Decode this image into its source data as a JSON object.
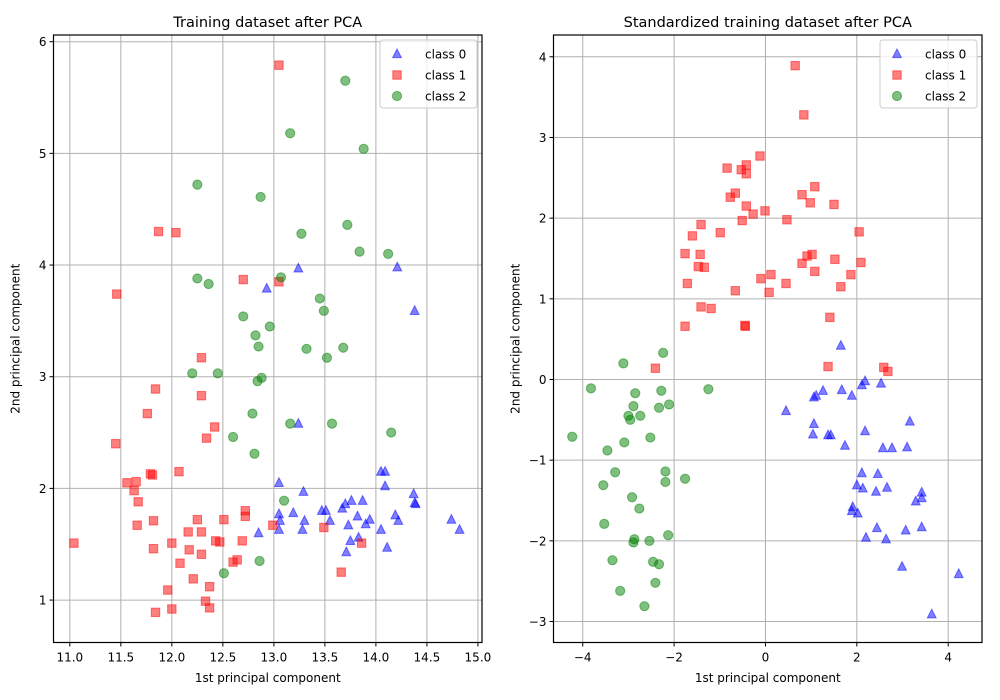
{
  "chart_data": [
    {
      "type": "scatter",
      "title": "Training dataset after PCA",
      "xlabel": "1st principal component",
      "ylabel": "2nd principal component",
      "xlim": [
        10.84,
        15.04
      ],
      "ylim": [
        0.62,
        6.06
      ],
      "xticks": [
        11.0,
        11.5,
        12.0,
        12.5,
        13.0,
        13.5,
        14.0,
        14.5,
        15.0
      ],
      "xtick_labels": [
        "11.0",
        "11.5",
        "12.0",
        "12.5",
        "13.0",
        "13.5",
        "14.0",
        "14.5",
        "15.0"
      ],
      "yticks": [
        1,
        2,
        3,
        4,
        5,
        6
      ],
      "ytick_labels": [
        "1",
        "2",
        "3",
        "4",
        "5",
        "6"
      ],
      "grid": true,
      "legend": "top-right",
      "series": [
        {
          "name": "class 0",
          "marker": "triangle",
          "color": "#0000ff",
          "points": [
            [
              13.24,
              3.97
            ],
            [
              14.21,
              3.98
            ],
            [
              12.93,
              3.79
            ],
            [
              14.38,
              3.59
            ],
            [
              13.24,
              2.58
            ],
            [
              13.05,
              2.05
            ],
            [
              14.05,
              2.15
            ],
            [
              14.09,
              2.15
            ],
            [
              14.09,
              2.02
            ],
            [
              13.29,
              1.97
            ],
            [
              14.37,
              1.95
            ],
            [
              14.38,
              1.87
            ],
            [
              14.39,
              1.86
            ],
            [
              13.76,
              1.89
            ],
            [
              13.87,
              1.89
            ],
            [
              13.7,
              1.86
            ],
            [
              13.67,
              1.82
            ],
            [
              13.05,
              1.77
            ],
            [
              13.19,
              1.78
            ],
            [
              13.47,
              1.8
            ],
            [
              13.51,
              1.8
            ],
            [
              13.82,
              1.75
            ],
            [
              14.19,
              1.76
            ],
            [
              13.06,
              1.71
            ],
            [
              13.3,
              1.71
            ],
            [
              13.55,
              1.71
            ],
            [
              13.94,
              1.72
            ],
            [
              14.22,
              1.71
            ],
            [
              14.74,
              1.72
            ],
            [
              13.73,
              1.67
            ],
            [
              13.9,
              1.68
            ],
            [
              13.05,
              1.63
            ],
            [
              13.28,
              1.63
            ],
            [
              14.05,
              1.63
            ],
            [
              14.82,
              1.63
            ],
            [
              12.85,
              1.6
            ],
            [
              13.75,
              1.53
            ],
            [
              13.83,
              1.56
            ],
            [
              14.11,
              1.47
            ],
            [
              13.71,
              1.43
            ]
          ]
        },
        {
          "name": "class 1",
          "marker": "square",
          "color": "#ff0000",
          "points": [
            [
              13.05,
              5.79
            ],
            [
              11.87,
              4.3
            ],
            [
              12.04,
              4.29
            ],
            [
              11.46,
              3.74
            ],
            [
              12.7,
              3.87
            ],
            [
              13.05,
              3.85
            ],
            [
              12.29,
              3.17
            ],
            [
              11.84,
              2.89
            ],
            [
              12.29,
              2.83
            ],
            [
              11.76,
              2.67
            ],
            [
              12.42,
              2.55
            ],
            [
              12.34,
              2.45
            ],
            [
              11.45,
              2.4
            ],
            [
              12.07,
              2.15
            ],
            [
              11.79,
              2.13
            ],
            [
              11.81,
              2.12
            ],
            [
              11.56,
              2.05
            ],
            [
              11.65,
              2.06
            ],
            [
              11.63,
              1.98
            ],
            [
              11.67,
              1.88
            ],
            [
              12.72,
              1.8
            ],
            [
              12.72,
              1.75
            ],
            [
              12.25,
              1.72
            ],
            [
              12.51,
              1.72
            ],
            [
              11.82,
              1.71
            ],
            [
              11.66,
              1.67
            ],
            [
              12.99,
              1.67
            ],
            [
              13.49,
              1.65
            ],
            [
              12.16,
              1.61
            ],
            [
              12.29,
              1.61
            ],
            [
              11.04,
              1.51
            ],
            [
              12.0,
              1.51
            ],
            [
              12.43,
              1.53
            ],
            [
              12.47,
              1.52
            ],
            [
              12.69,
              1.53
            ],
            [
              13.86,
              1.51
            ],
            [
              11.82,
              1.46
            ],
            [
              12.17,
              1.45
            ],
            [
              12.29,
              1.41
            ],
            [
              12.08,
              1.33
            ],
            [
              12.6,
              1.34
            ],
            [
              12.64,
              1.36
            ],
            [
              13.66,
              1.25
            ],
            [
              12.21,
              1.19
            ],
            [
              12.37,
              1.12
            ],
            [
              11.96,
              1.09
            ],
            [
              12.33,
              0.99
            ],
            [
              12.37,
              0.93
            ],
            [
              12.0,
              0.92
            ],
            [
              11.84,
              0.89
            ]
          ]
        },
        {
          "name": "class 2",
          "marker": "circle",
          "color": "#008000",
          "points": [
            [
              12.25,
              4.72
            ],
            [
              12.87,
              4.61
            ],
            [
              13.16,
              5.18
            ],
            [
              13.7,
              5.65
            ],
            [
              13.88,
              5.04
            ],
            [
              13.27,
              4.28
            ],
            [
              13.72,
              4.36
            ],
            [
              13.84,
              4.12
            ],
            [
              14.12,
              4.1
            ],
            [
              12.25,
              3.88
            ],
            [
              12.36,
              3.83
            ],
            [
              13.07,
              3.89
            ],
            [
              13.45,
              3.7
            ],
            [
              13.49,
              3.59
            ],
            [
              12.7,
              3.54
            ],
            [
              12.96,
              3.45
            ],
            [
              12.82,
              3.37
            ],
            [
              12.85,
              3.27
            ],
            [
              13.32,
              3.25
            ],
            [
              13.68,
              3.26
            ],
            [
              13.52,
              3.17
            ],
            [
              12.2,
              3.03
            ],
            [
              12.45,
              3.03
            ],
            [
              12.84,
              2.96
            ],
            [
              12.88,
              2.99
            ],
            [
              12.79,
              2.67
            ],
            [
              13.16,
              2.58
            ],
            [
              13.57,
              2.58
            ],
            [
              12.6,
              2.46
            ],
            [
              14.15,
              2.5
            ],
            [
              12.81,
              2.31
            ],
            [
              13.1,
              1.89
            ],
            [
              12.86,
              1.35
            ],
            [
              12.51,
              1.24
            ]
          ]
        }
      ]
    },
    {
      "type": "scatter",
      "title": "Standardized training dataset after PCA",
      "xlabel": "1st principal component",
      "ylabel": "2nd principal component",
      "xlim": [
        -4.64,
        4.74
      ],
      "ylim": [
        -3.26,
        4.27
      ],
      "xticks": [
        -4,
        -2,
        0,
        2,
        4
      ],
      "xtick_labels": [
        "−4",
        "−2",
        "0",
        "2",
        "4"
      ],
      "yticks": [
        -3,
        -2,
        -1,
        0,
        1,
        2,
        3,
        4
      ],
      "ytick_labels": [
        "−3",
        "−2",
        "−1",
        "0",
        "1",
        "2",
        "3",
        "4"
      ],
      "grid": true,
      "legend": "top-right",
      "series": [
        {
          "name": "class 0",
          "marker": "triangle",
          "color": "#0000ff",
          "points": [
            [
              1.65,
              0.42
            ],
            [
              2.18,
              -0.02
            ],
            [
              2.11,
              -0.07
            ],
            [
              2.53,
              -0.05
            ],
            [
              1.26,
              -0.14
            ],
            [
              1.67,
              -0.13
            ],
            [
              1.11,
              -0.2
            ],
            [
              1.06,
              -0.22
            ],
            [
              1.89,
              -0.2
            ],
            [
              0.45,
              -0.39
            ],
            [
              3.16,
              -0.52
            ],
            [
              1.06,
              -0.55
            ],
            [
              2.18,
              -0.64
            ],
            [
              1.04,
              -0.68
            ],
            [
              1.37,
              -0.69
            ],
            [
              1.43,
              -0.69
            ],
            [
              1.74,
              -0.82
            ],
            [
              2.57,
              -0.85
            ],
            [
              2.77,
              -0.85
            ],
            [
              3.1,
              -0.84
            ],
            [
              2.11,
              -1.16
            ],
            [
              2.46,
              -1.17
            ],
            [
              2.0,
              -1.31
            ],
            [
              2.13,
              -1.35
            ],
            [
              2.66,
              -1.34
            ],
            [
              2.42,
              -1.39
            ],
            [
              3.42,
              -1.4
            ],
            [
              3.42,
              -1.47
            ],
            [
              3.29,
              -1.51
            ],
            [
              1.91,
              -1.58
            ],
            [
              1.89,
              -1.63
            ],
            [
              2.02,
              -1.66
            ],
            [
              2.44,
              -1.84
            ],
            [
              3.07,
              -1.87
            ],
            [
              3.42,
              -1.83
            ],
            [
              2.2,
              -1.96
            ],
            [
              2.64,
              -1.98
            ],
            [
              2.99,
              -2.32
            ],
            [
              4.23,
              -2.41
            ],
            [
              3.64,
              -2.91
            ]
          ]
        },
        {
          "name": "class 1",
          "marker": "square",
          "color": "#ff0000",
          "points": [
            [
              0.65,
              3.89
            ],
            [
              0.84,
              3.28
            ],
            [
              -0.12,
              2.77
            ],
            [
              -0.84,
              2.62
            ],
            [
              -0.53,
              2.6
            ],
            [
              -0.42,
              2.66
            ],
            [
              -0.42,
              2.55
            ],
            [
              1.08,
              2.39
            ],
            [
              0.8,
              2.29
            ],
            [
              -0.77,
              2.26
            ],
            [
              -0.66,
              2.31
            ],
            [
              0.98,
              2.19
            ],
            [
              1.5,
              2.17
            ],
            [
              -0.42,
              2.15
            ],
            [
              -0.01,
              2.09
            ],
            [
              -0.27,
              2.05
            ],
            [
              0.47,
              1.98
            ],
            [
              -0.51,
              1.97
            ],
            [
              -1.41,
              1.92
            ],
            [
              2.05,
              1.83
            ],
            [
              -0.99,
              1.82
            ],
            [
              -1.6,
              1.78
            ],
            [
              -1.76,
              1.56
            ],
            [
              -1.43,
              1.55
            ],
            [
              0.91,
              1.53
            ],
            [
              1.02,
              1.55
            ],
            [
              1.52,
              1.49
            ],
            [
              0.8,
              1.44
            ],
            [
              2.09,
              1.45
            ],
            [
              -1.47,
              1.4
            ],
            [
              -1.34,
              1.39
            ],
            [
              1.08,
              1.34
            ],
            [
              1.87,
              1.3
            ],
            [
              0.12,
              1.3
            ],
            [
              -0.1,
              1.25
            ],
            [
              -1.71,
              1.19
            ],
            [
              0.45,
              1.19
            ],
            [
              1.65,
              1.15
            ],
            [
              -0.66,
              1.1
            ],
            [
              0.08,
              1.08
            ],
            [
              -1.41,
              0.9
            ],
            [
              -1.19,
              0.88
            ],
            [
              1.41,
              0.77
            ],
            [
              -1.76,
              0.66
            ],
            [
              -0.45,
              0.67
            ],
            [
              -0.44,
              0.66
            ],
            [
              -2.41,
              0.14
            ],
            [
              1.37,
              0.16
            ],
            [
              2.59,
              0.15
            ],
            [
              2.68,
              0.1
            ]
          ]
        },
        {
          "name": "class 2",
          "marker": "circle",
          "color": "#008000",
          "points": [
            [
              -2.24,
              0.33
            ],
            [
              -3.11,
              0.2
            ],
            [
              -3.82,
              -0.11
            ],
            [
              -2.85,
              -0.17
            ],
            [
              -2.28,
              -0.14
            ],
            [
              -1.25,
              -0.12
            ],
            [
              -2.89,
              -0.33
            ],
            [
              -2.33,
              -0.35
            ],
            [
              -2.11,
              -0.31
            ],
            [
              -3.0,
              -0.45
            ],
            [
              -2.96,
              -0.5
            ],
            [
              -2.74,
              -0.45
            ],
            [
              -4.23,
              -0.71
            ],
            [
              -2.52,
              -0.72
            ],
            [
              -3.09,
              -0.78
            ],
            [
              -3.46,
              -0.88
            ],
            [
              -3.29,
              -1.15
            ],
            [
              -2.19,
              -1.14
            ],
            [
              -1.76,
              -1.23
            ],
            [
              -2.19,
              -1.27
            ],
            [
              -3.55,
              -1.31
            ],
            [
              -2.92,
              -1.46
            ],
            [
              -2.76,
              -1.6
            ],
            [
              -3.53,
              -1.79
            ],
            [
              -2.13,
              -1.93
            ],
            [
              -2.87,
              -1.98
            ],
            [
              -2.89,
              -2.02
            ],
            [
              -2.54,
              -2.0
            ],
            [
              -3.35,
              -2.24
            ],
            [
              -2.46,
              -2.26
            ],
            [
              -2.33,
              -2.29
            ],
            [
              -2.41,
              -2.52
            ],
            [
              -3.18,
              -2.62
            ],
            [
              -2.65,
              -2.81
            ]
          ]
        }
      ]
    }
  ]
}
